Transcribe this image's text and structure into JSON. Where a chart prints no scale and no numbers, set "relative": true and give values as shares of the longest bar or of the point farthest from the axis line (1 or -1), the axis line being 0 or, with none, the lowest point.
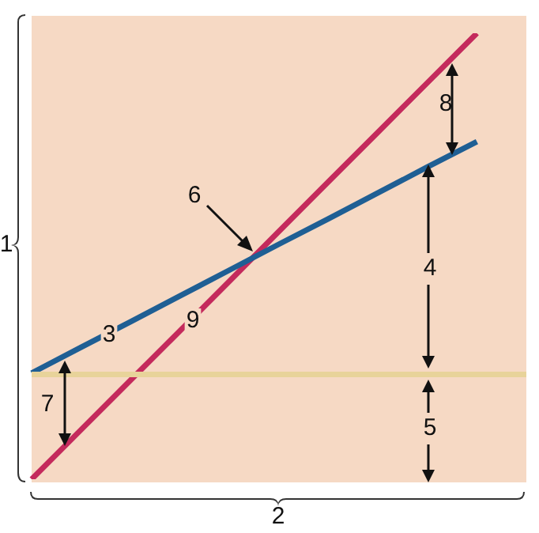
{
  "chart_data": {
    "type": "line",
    "relative": true,
    "xlabel": "2",
    "ylabel": "1",
    "categories": [
      null,
      null,
      null,
      null,
      null,
      null,
      null,
      null,
      null,
      null,
      null
    ],
    "series": [
      {
        "color": "#c42a5c",
        "values": [
          0,
          0.111,
          0.222,
          0.333,
          0.444,
          0.556,
          0.667,
          0.778,
          0.889,
          1,
          null
        ]
      },
      {
        "color": "#1f5f94",
        "values": [
          0.238,
          0.296,
          0.353,
          0.411,
          0.469,
          0.527,
          0.584,
          0.642,
          0.7,
          0.757,
          null
        ]
      },
      {
        "color": "#e8d39a",
        "values": [
          0.235,
          0.235,
          0.235,
          0.235,
          0.235,
          0.235,
          0.235,
          0.235,
          0.235,
          0.235,
          0.235
        ]
      }
    ],
    "annotations": [
      "6",
      "3",
      "9",
      "8",
      "4",
      "7",
      "5"
    ],
    "legend": false,
    "marker": "none",
    "line_style": "solid",
    "tick_labels": false
  }
}
